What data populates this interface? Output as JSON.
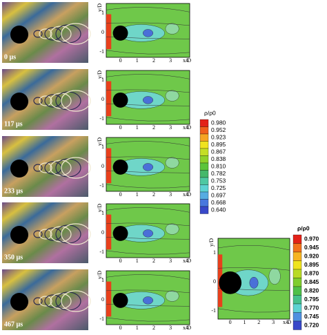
{
  "frames": [
    {
      "time": "0 µs"
    },
    {
      "time": "117 µs"
    },
    {
      "time": "233 µs"
    },
    {
      "time": "350 µs"
    },
    {
      "time": "467 µs"
    }
  ],
  "axes": {
    "y_label": "y/D",
    "x_label": "x/D",
    "y_ticks": [
      "1",
      "0",
      "-1"
    ],
    "x_ticks": [
      "0",
      "1",
      "2",
      "3",
      "4"
    ]
  },
  "colorbar_1": {
    "title": "ρ/ρ0",
    "levels": [
      "0.980",
      "0.952",
      "0.923",
      "0.895",
      "0.867",
      "0.838",
      "0.810",
      "0.782",
      "0.753",
      "0.725",
      "0.697",
      "0.668",
      "0.640"
    ],
    "colors": [
      "#e32219",
      "#f0601c",
      "#f6a423",
      "#efe31e",
      "#c4de25",
      "#8fd22a",
      "#5cc43a",
      "#44b86a",
      "#4ec8a2",
      "#5dd2d2",
      "#56ace2",
      "#4978de",
      "#3848c9"
    ]
  },
  "colorbar_2": {
    "title": "ρ/ρ0",
    "levels": [
      "0.970",
      "0.945",
      "0.920",
      "0.895",
      "0.870",
      "0.845",
      "0.820",
      "0.795",
      "0.770",
      "0.745",
      "0.720"
    ],
    "colors": [
      "#e32219",
      "#f2731e",
      "#f6b423",
      "#efe31e",
      "#b9da26",
      "#7fcd2e",
      "#4fc048",
      "#46c08c",
      "#5dd2d2",
      "#4f90e0",
      "#3848c9"
    ]
  }
}
